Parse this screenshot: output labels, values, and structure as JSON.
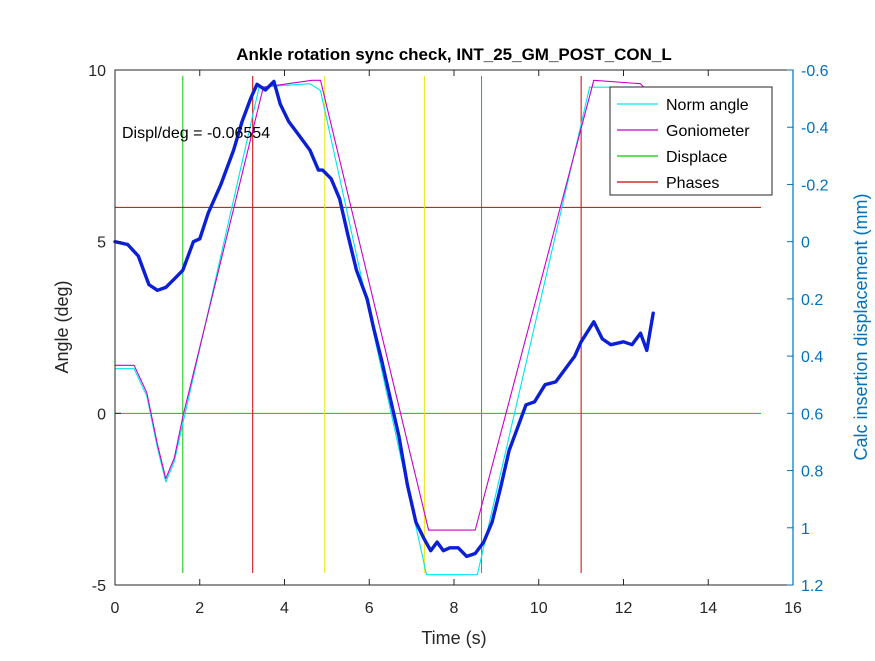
{
  "chart_data": {
    "type": "line",
    "title": "Ankle rotation sync check, INT_25_GM_POST_CON_L",
    "xlabel": "Time (s)",
    "ylabel_left": "Angle (deg)",
    "ylabel_right": "Calc insertion displacement (mm)",
    "annotation": "Displ/deg = -0.06554",
    "xlim": [
      0,
      16
    ],
    "ylim_left": [
      -5,
      10
    ],
    "ylim_right": [
      -0.6,
      1.2
    ],
    "right_axis_reversed": true,
    "x_ticks": [
      "0",
      "2",
      "4",
      "6",
      "8",
      "10",
      "12",
      "14",
      "16"
    ],
    "y_ticks_left": [
      "-5",
      "0",
      "5",
      "10"
    ],
    "y_ticks_right": [
      "-0.6",
      "-0.4",
      "-0.2",
      "0",
      "0.2",
      "0.4",
      "0.6",
      "0.8",
      "1",
      "1.2"
    ],
    "legend_position": "top-right",
    "legend": [
      "Norm angle",
      "Goniometer",
      "Displace",
      "Phases"
    ],
    "colors": {
      "norm_angle": "#00e5ee",
      "goniometer": "#cc00cc",
      "displace": "#00cc00",
      "phases": "#cc0000",
      "yellow_marker": "#e6e600",
      "displacement_trace": "#0a1fd6",
      "right_axis": "#0072bd"
    },
    "series": [
      {
        "name": "Norm angle",
        "axis": "left",
        "x": [
          0,
          0.45,
          0.75,
          1.0,
          1.2,
          1.4,
          1.6,
          3.4,
          4.6,
          4.85,
          7.35,
          8.55,
          11.2,
          12.5
        ],
        "y": [
          1.3,
          1.3,
          0.5,
          -1.0,
          -2.0,
          -1.4,
          -0.3,
          9.5,
          9.6,
          9.4,
          -4.7,
          -4.7,
          9.5,
          9.5
        ]
      },
      {
        "name": "Goniometer",
        "axis": "left",
        "x": [
          0,
          0.45,
          0.75,
          1.0,
          1.2,
          1.4,
          1.6,
          3.5,
          4.65,
          4.85,
          7.4,
          8.5,
          11.3,
          12.4,
          12.55
        ],
        "y": [
          1.4,
          1.4,
          0.6,
          -0.9,
          -1.9,
          -1.3,
          -0.1,
          9.5,
          9.7,
          9.7,
          -3.4,
          -3.4,
          9.7,
          9.6,
          9.4
        ]
      },
      {
        "name": "Displace",
        "axis": "left",
        "x_lines": [
          1.6,
          8.65
        ],
        "y_lines": [
          0
        ]
      },
      {
        "name": "Phases",
        "axis": "left",
        "x_lines": [
          3.25,
          11.0
        ],
        "y_lines": [
          6.0
        ]
      },
      {
        "name": "",
        "axis": "left",
        "color": "yellow_marker",
        "x_lines": [
          4.95,
          7.3
        ]
      },
      {
        "name": "",
        "axis": "right",
        "color": "displacement_trace",
        "x": [
          0,
          0.3,
          0.55,
          0.8,
          1.0,
          1.2,
          1.4,
          1.6,
          1.85,
          2.0,
          2.2,
          2.5,
          2.8,
          3.0,
          3.2,
          3.35,
          3.55,
          3.75,
          3.9,
          4.1,
          4.3,
          4.6,
          4.8,
          4.9,
          5.1,
          5.3,
          5.5,
          5.7,
          5.95,
          6.1,
          6.3,
          6.5,
          6.7,
          6.9,
          7.1,
          7.3,
          7.45,
          7.6,
          7.75,
          7.9,
          8.1,
          8.3,
          8.5,
          8.7,
          8.9,
          9.1,
          9.3,
          9.5,
          9.7,
          9.9,
          10.15,
          10.4,
          10.6,
          10.85,
          11.0,
          11.3,
          11.5,
          11.7,
          12.0,
          12.2,
          12.4,
          12.55,
          12.7
        ],
        "y": [
          0.0,
          0.01,
          0.05,
          0.15,
          0.17,
          0.16,
          0.13,
          0.1,
          0.0,
          -0.01,
          -0.1,
          -0.2,
          -0.32,
          -0.42,
          -0.5,
          -0.55,
          -0.53,
          -0.56,
          -0.48,
          -0.42,
          -0.38,
          -0.32,
          -0.25,
          -0.25,
          -0.22,
          -0.15,
          -0.02,
          0.1,
          0.2,
          0.3,
          0.42,
          0.55,
          0.68,
          0.85,
          0.98,
          1.04,
          1.08,
          1.05,
          1.08,
          1.07,
          1.07,
          1.1,
          1.09,
          1.05,
          0.98,
          0.86,
          0.73,
          0.65,
          0.57,
          0.56,
          0.5,
          0.49,
          0.45,
          0.4,
          0.35,
          0.28,
          0.34,
          0.36,
          0.35,
          0.36,
          0.32,
          0.38,
          0.25
        ]
      }
    ]
  }
}
